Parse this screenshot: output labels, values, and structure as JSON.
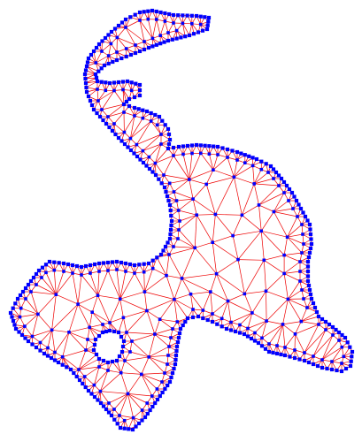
{
  "figure": {
    "kind": "triangular-mesh",
    "edge_color": "#ee0000",
    "node_color": "#0000ff",
    "background_color": "#ffffff"
  }
}
